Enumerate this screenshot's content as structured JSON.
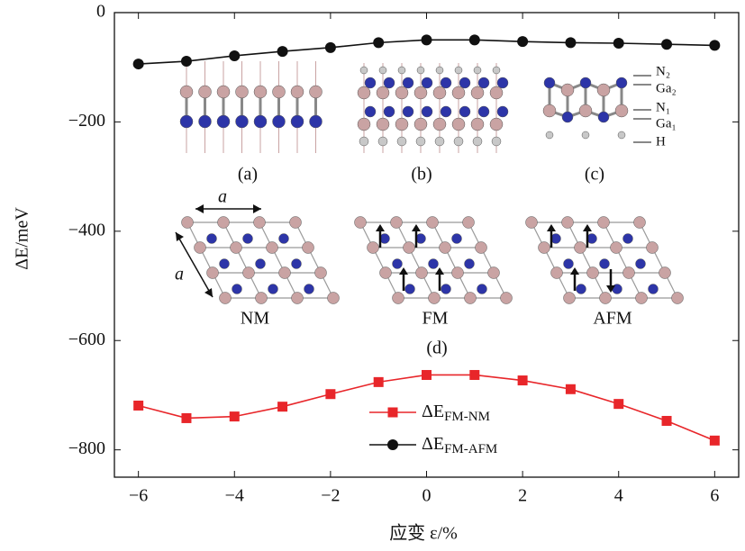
{
  "chart_data": {
    "type": "line",
    "x_label": "应变 ε/%",
    "y_label": "ΔE/meV",
    "x": [
      -6,
      -5,
      -4,
      -3,
      -2,
      -1,
      0,
      1,
      2,
      3,
      4,
      5,
      6
    ],
    "series": [
      {
        "name": "ΔE",
        "name_subscript": "FM-NM",
        "color": "#e8262a",
        "marker": "square",
        "values": [
          -719,
          -742,
          -739,
          -721,
          -698,
          -676,
          -663,
          -663,
          -673,
          -689,
          -716,
          -747,
          -783
        ]
      },
      {
        "name": "ΔE",
        "name_subscript": "FM-AFM",
        "color": "#111111",
        "marker": "circle",
        "values": [
          -94,
          -89,
          -79,
          -71,
          -64,
          -55,
          -50,
          -50,
          -53,
          -55,
          -56,
          -58,
          -60
        ]
      }
    ],
    "xlim": [
      -6.5,
      6.5
    ],
    "ylim": [
      -850,
      0
    ],
    "xticks": [
      {
        "value": -6,
        "label": "−6"
      },
      {
        "value": -4,
        "label": "−4"
      },
      {
        "value": -2,
        "label": "−2"
      },
      0,
      2,
      4,
      6
    ],
    "yticks": [
      0,
      {
        "value": -200,
        "label": "−200"
      },
      {
        "value": -400,
        "label": "−400"
      },
      {
        "value": -600,
        "label": "−600"
      },
      {
        "value": -800,
        "label": "−800"
      }
    ],
    "grid": false,
    "insets": {
      "panel_labels": [
        "(a)",
        "(b)",
        "(c)",
        "(d)"
      ],
      "magnetic_labels": [
        "NM",
        "FM",
        "AFM"
      ],
      "atom_labels": [
        "N₂",
        "Ga₂",
        "N₁",
        "Ga₁",
        "H"
      ],
      "lattice_labels": [
        "a",
        "a"
      ]
    }
  }
}
